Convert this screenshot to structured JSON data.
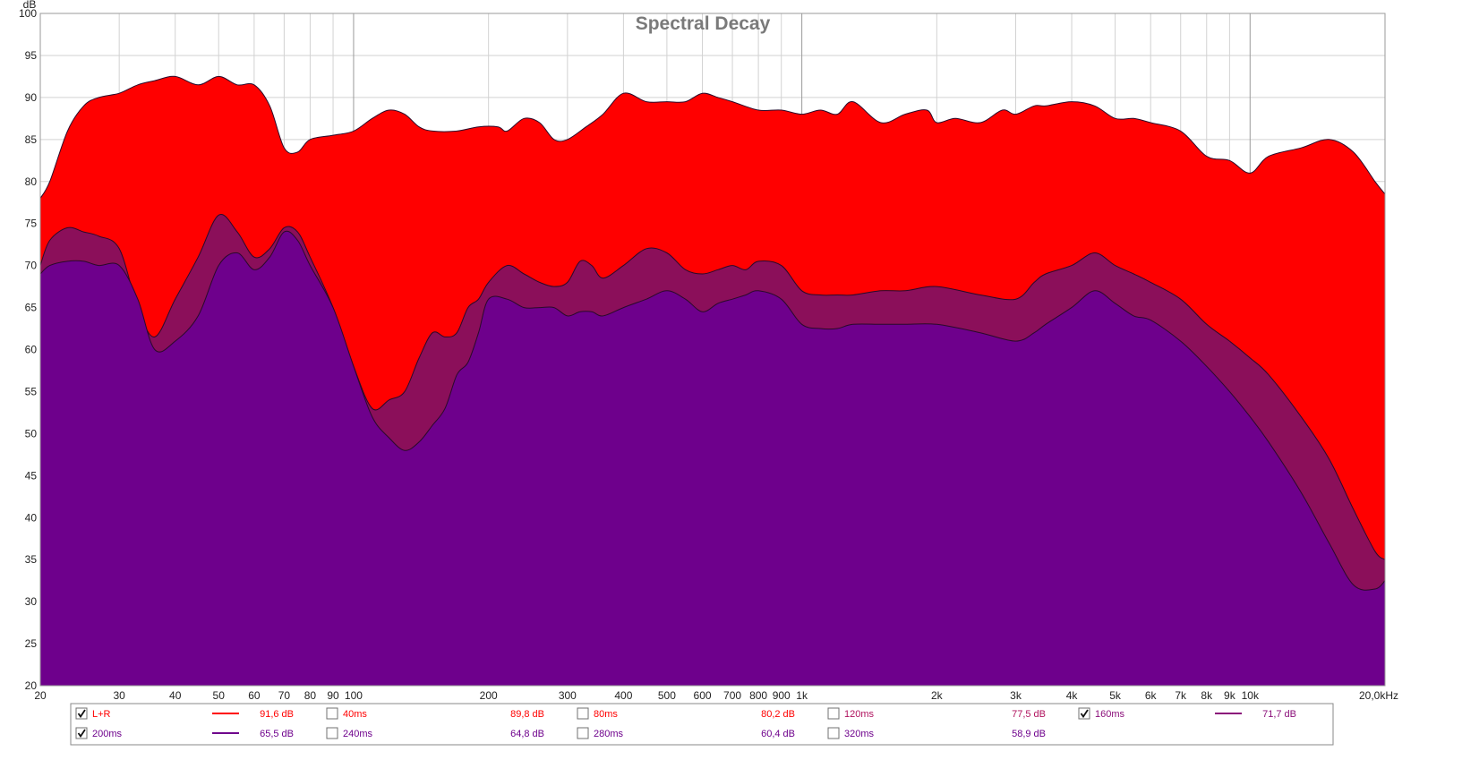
{
  "chart_data": {
    "type": "area",
    "title": "Spectral Decay",
    "ylabel": "dB",
    "xlabel": "",
    "xscale": "log",
    "xlim": [
      20,
      20000
    ],
    "ylim": [
      20,
      100
    ],
    "grid": true,
    "x_tick_values": [
      20,
      30,
      40,
      50,
      60,
      70,
      80,
      90,
      100,
      200,
      300,
      400,
      500,
      600,
      700,
      800,
      900,
      1000,
      2000,
      3000,
      4000,
      5000,
      6000,
      7000,
      8000,
      9000,
      10000,
      20000
    ],
    "x_tick_labels": [
      "20",
      "30",
      "40",
      "50",
      "60",
      "70",
      "80",
      "90",
      "100",
      "200",
      "300",
      "400",
      "500",
      "600",
      "700",
      "800",
      "900",
      "1k",
      "2k",
      "3k",
      "4k",
      "5k",
      "6k",
      "7k",
      "8k",
      "9k",
      "10k",
      "20,0kHz"
    ],
    "y_ticks": [
      20,
      25,
      30,
      35,
      40,
      45,
      50,
      55,
      60,
      65,
      70,
      75,
      80,
      85,
      90,
      95,
      100
    ],
    "y_tick_labels": [
      "20",
      "25",
      "30",
      "35",
      "40",
      "45",
      "50",
      "55",
      "60",
      "65",
      "70",
      "75",
      "80",
      "85",
      "90",
      "95",
      "100"
    ],
    "series": [
      {
        "name": "L+R",
        "color": "#ff0000",
        "x": [
          20,
          21,
          23,
          25,
          27,
          30,
          33,
          36,
          40,
          45,
          50,
          55,
          60,
          65,
          70,
          75,
          80,
          90,
          100,
          110,
          120,
          130,
          140,
          150,
          170,
          190,
          210,
          220,
          240,
          260,
          280,
          300,
          330,
          360,
          400,
          450,
          500,
          550,
          600,
          650,
          700,
          800,
          900,
          1000,
          1100,
          1200,
          1300,
          1500,
          1700,
          1900,
          2000,
          2200,
          2500,
          2800,
          3000,
          3300,
          3500,
          4000,
          4500,
          5000,
          5500,
          6000,
          7000,
          8000,
          9000,
          10000,
          11000,
          13000,
          15000,
          17000,
          19000,
          20000
        ],
        "y": [
          78,
          80,
          86,
          89,
          90,
          90.5,
          91.5,
          92,
          92.5,
          91.5,
          92.5,
          91.5,
          91.5,
          89,
          84,
          83.5,
          85,
          85.5,
          86,
          87.5,
          88.5,
          88,
          86.5,
          86,
          86,
          86.5,
          86.5,
          86,
          87.5,
          87,
          85,
          85,
          86.5,
          88,
          90.5,
          89.5,
          89.5,
          89.5,
          90.5,
          90,
          89.5,
          88.5,
          88.5,
          88,
          88.5,
          88,
          89.5,
          87,
          88,
          88.5,
          87,
          87.5,
          87,
          88.5,
          88,
          89,
          89,
          89.5,
          89,
          87.5,
          87.5,
          87,
          86,
          83,
          82.5,
          81,
          83,
          84,
          85,
          83.5,
          80,
          78.5
        ]
      },
      {
        "name": "160ms",
        "color": "#8b0f5a",
        "x": [
          20,
          21,
          23,
          25,
          27,
          30,
          33,
          36,
          40,
          45,
          50,
          55,
          60,
          65,
          70,
          75,
          80,
          90,
          100,
          110,
          120,
          130,
          140,
          150,
          160,
          170,
          180,
          190,
          200,
          220,
          240,
          260,
          280,
          300,
          320,
          340,
          360,
          400,
          450,
          500,
          550,
          600,
          650,
          700,
          750,
          800,
          900,
          1000,
          1100,
          1200,
          1300,
          1500,
          1700,
          2000,
          2500,
          3000,
          3300,
          3500,
          4000,
          4500,
          5000,
          5500,
          6000,
          7000,
          8000,
          9000,
          10000,
          11000,
          13000,
          15000,
          17000,
          19000,
          20000
        ],
        "y": [
          70,
          73,
          74.5,
          74,
          73.5,
          72,
          65,
          61.5,
          66,
          71,
          76,
          74,
          71,
          72,
          74.5,
          74,
          71,
          65,
          58,
          53,
          54,
          55,
          59,
          62,
          61.5,
          62,
          65,
          66,
          68,
          70,
          69,
          68,
          67.5,
          68,
          70.5,
          70,
          68.5,
          70,
          72,
          71.5,
          69.5,
          69,
          69.5,
          70,
          69.5,
          70.5,
          70,
          67,
          66.5,
          66.5,
          66.5,
          67,
          67,
          67.5,
          66.5,
          66,
          68,
          69,
          70,
          71.5,
          70,
          69,
          68,
          66,
          63,
          61,
          59,
          57,
          52,
          47,
          41,
          36,
          35
        ]
      },
      {
        "name": "200ms",
        "color": "#6e008c",
        "x": [
          20,
          21,
          23,
          25,
          27,
          30,
          33,
          36,
          40,
          45,
          50,
          55,
          60,
          65,
          70,
          75,
          80,
          90,
          100,
          110,
          120,
          130,
          140,
          150,
          160,
          170,
          180,
          190,
          200,
          220,
          240,
          260,
          280,
          300,
          320,
          340,
          360,
          400,
          450,
          500,
          550,
          600,
          650,
          700,
          750,
          800,
          900,
          1000,
          1100,
          1200,
          1300,
          1500,
          1700,
          2000,
          2500,
          3000,
          3300,
          3500,
          4000,
          4500,
          5000,
          5500,
          6000,
          7000,
          8000,
          9000,
          10000,
          11000,
          13000,
          15000,
          17000,
          19000,
          20000
        ],
        "y": [
          69,
          70,
          70.5,
          70.5,
          70,
          70,
          66,
          60,
          61,
          64,
          70,
          71.5,
          69.5,
          71,
          74,
          73,
          70,
          65,
          58,
          52,
          49.5,
          48,
          49,
          51,
          53,
          57,
          58.5,
          62,
          66,
          66,
          65,
          65,
          65,
          64,
          64.5,
          64.5,
          64,
          65,
          66,
          67,
          66,
          64.5,
          65.5,
          66,
          66.5,
          67,
          66,
          63,
          62.5,
          62.5,
          63,
          63,
          63,
          63,
          62,
          61,
          62,
          63,
          65,
          67,
          65.5,
          64,
          63.5,
          61,
          58,
          55,
          52,
          49,
          43,
          37,
          32,
          31.5,
          32.5
        ]
      }
    ],
    "legend": {
      "placement": "bottom",
      "items": [
        {
          "label": "L+R",
          "checked": true,
          "value": "91,6 dB",
          "color": "#ff0000",
          "line": true
        },
        {
          "label": "40ms",
          "checked": false,
          "value": "89,8 dB",
          "color": "#ff0000",
          "line": false
        },
        {
          "label": "80ms",
          "checked": false,
          "value": "80,2 dB",
          "color": "#ff0000",
          "line": false
        },
        {
          "label": "120ms",
          "checked": false,
          "value": "77,5 dB",
          "color": "#b0125e",
          "line": false
        },
        {
          "label": "160ms",
          "checked": true,
          "value": "71,7 dB",
          "color": "#8b0f7a",
          "line": true
        },
        {
          "label": "200ms",
          "checked": true,
          "value": "65,5 dB",
          "color": "#6e008c",
          "line": true
        },
        {
          "label": "240ms",
          "checked": false,
          "value": "64,8 dB",
          "color": "#6e008c",
          "line": false
        },
        {
          "label": "280ms",
          "checked": false,
          "value": "60,4 dB",
          "color": "#6e008c",
          "line": false
        },
        {
          "label": "320ms",
          "checked": false,
          "value": "58,9 dB",
          "color": "#6e008c",
          "line": false
        }
      ]
    }
  }
}
